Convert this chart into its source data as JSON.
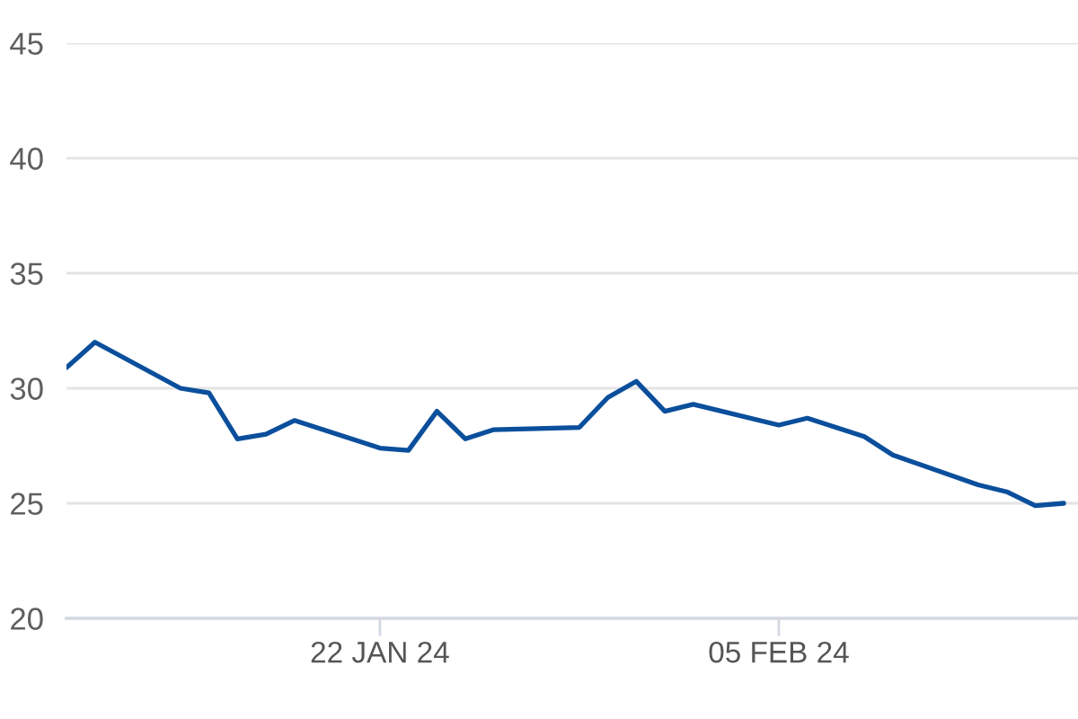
{
  "chart_data": {
    "type": "line",
    "x": [
      "2024-01-11",
      "2024-01-12",
      "2024-01-15",
      "2024-01-16",
      "2024-01-17",
      "2024-01-18",
      "2024-01-19",
      "2024-01-22",
      "2024-01-23",
      "2024-01-24",
      "2024-01-25",
      "2024-01-26",
      "2024-01-29",
      "2024-01-30",
      "2024-01-31",
      "2024-02-01",
      "2024-02-02",
      "2024-02-05",
      "2024-02-06",
      "2024-02-07",
      "2024-02-08",
      "2024-02-09",
      "2024-02-12",
      "2024-02-13",
      "2024-02-14",
      "2024-02-15"
    ],
    "values": [
      30.9,
      32.0,
      30.0,
      29.8,
      27.8,
      28.0,
      28.6,
      27.4,
      27.3,
      29.0,
      27.8,
      28.2,
      28.3,
      29.6,
      30.3,
      29.0,
      29.3,
      28.4,
      28.7,
      28.3,
      27.9,
      27.1,
      25.8,
      25.5,
      24.9,
      25.0
    ],
    "color": "#0b4f9c",
    "xlim": [
      "2024-01-11",
      "2024-02-15T12:00"
    ],
    "xticks": [
      {
        "value": "2024-01-22",
        "label": "22 JAN 24"
      },
      {
        "value": "2024-02-05",
        "label": "05 FEB 24"
      }
    ],
    "ylim": [
      20,
      45
    ],
    "yticks": [
      20,
      25,
      30,
      35,
      40,
      45
    ],
    "grid": "y"
  }
}
